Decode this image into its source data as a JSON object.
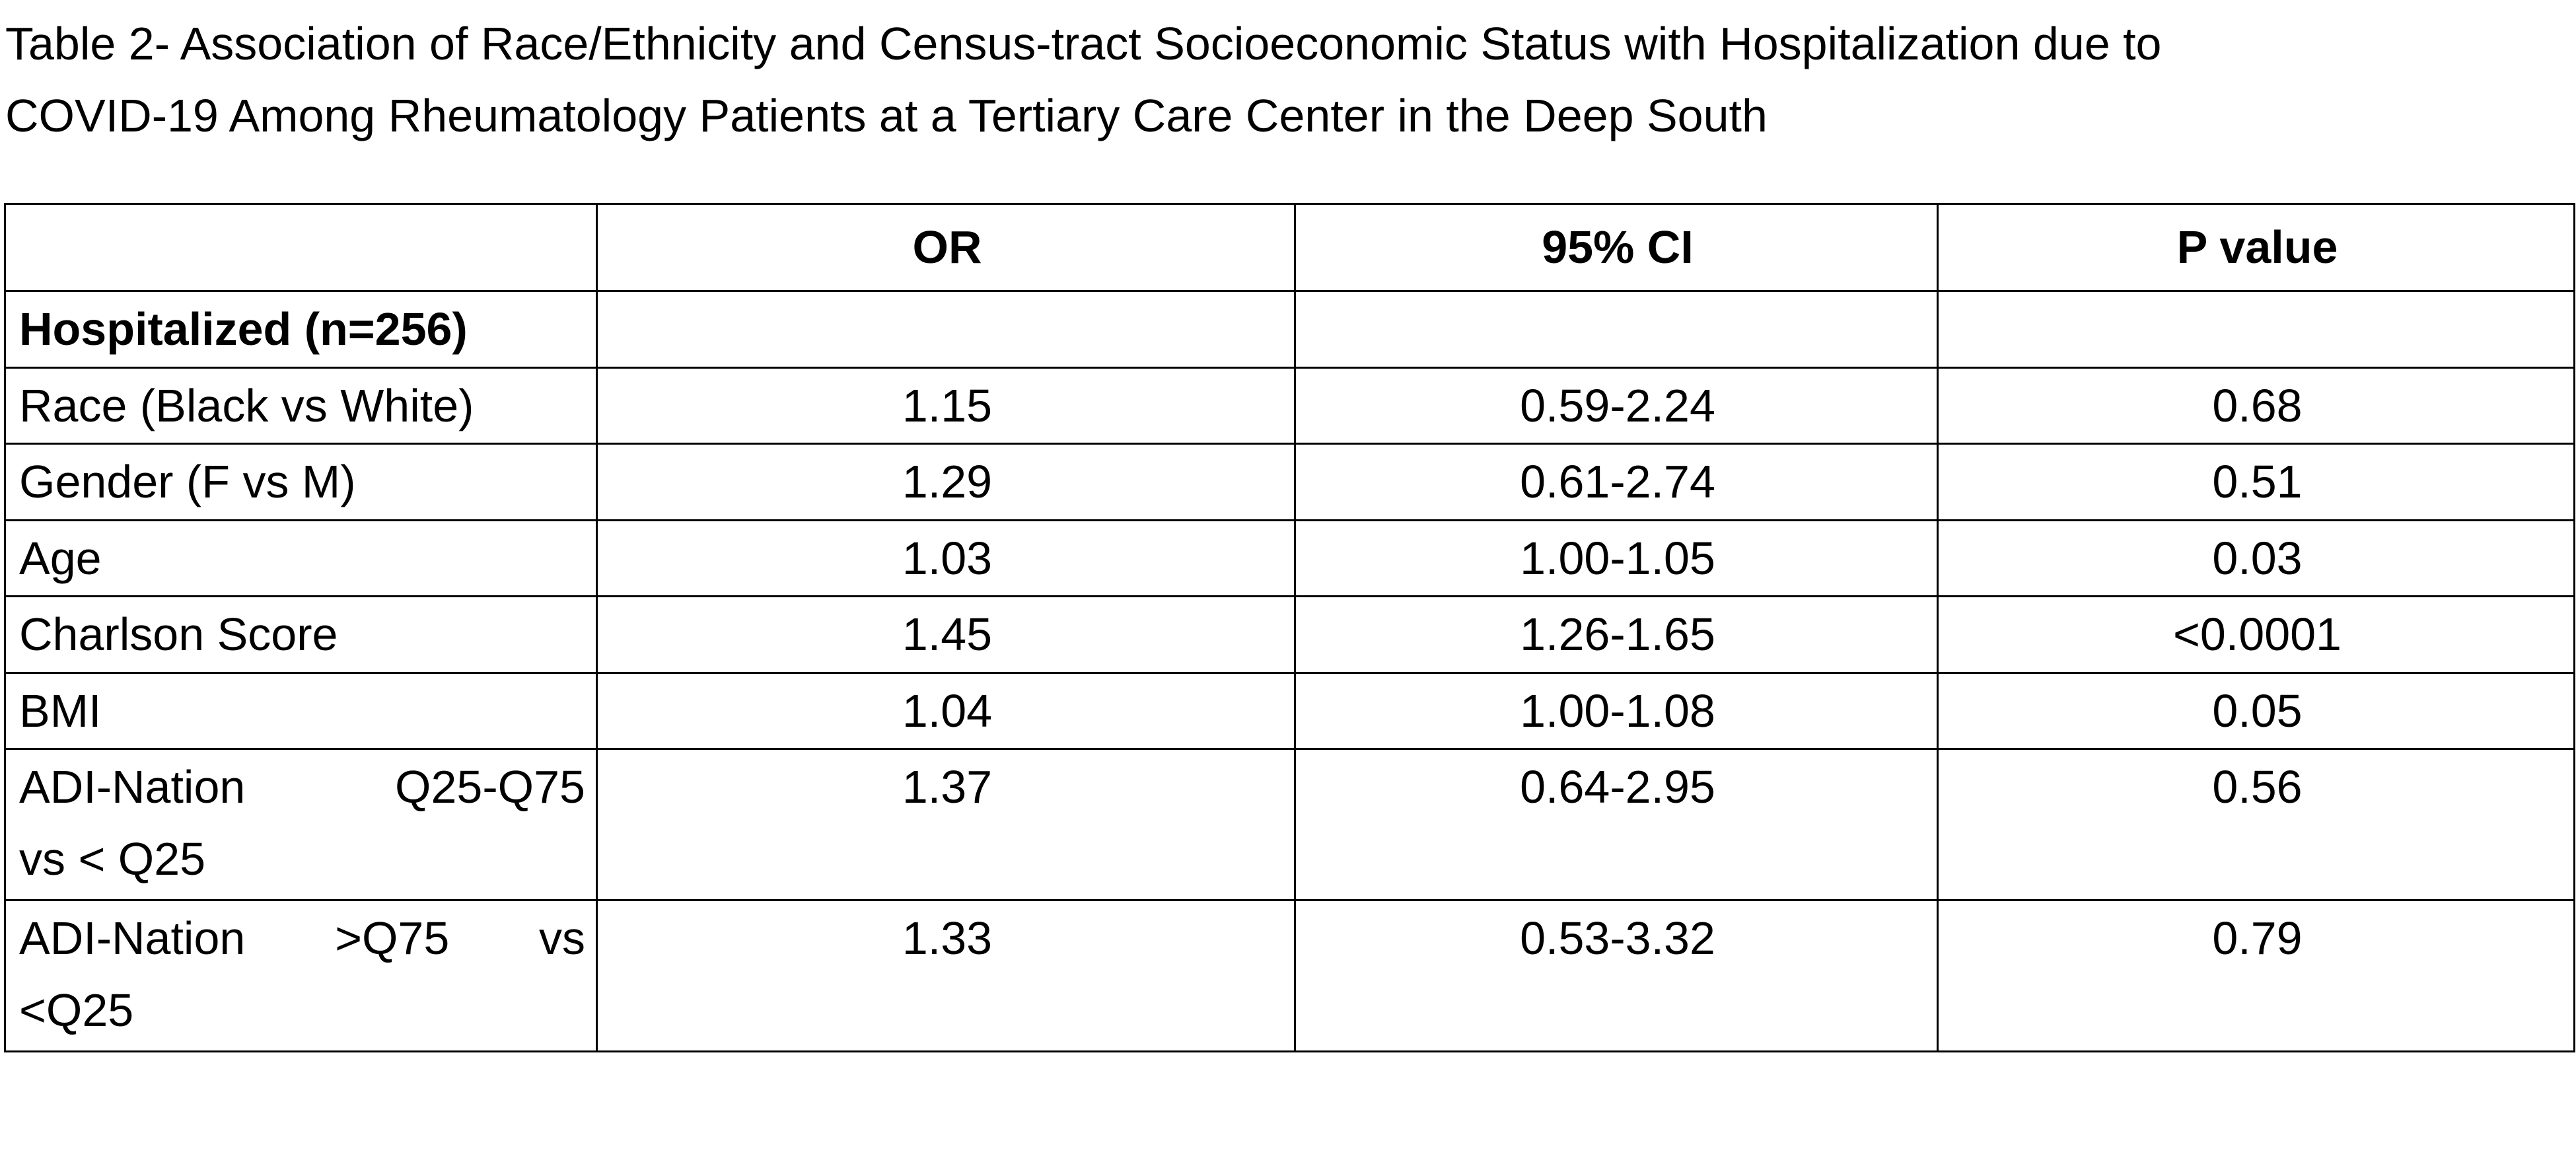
{
  "title_lines": [
    "Table 2- Association of Race/Ethnicity and Census-tract Socioeconomic Status with Hospitalization due to",
    "COVID-19 Among Rheumatology Patients at a Tertiary Care Center in the Deep South"
  ],
  "table": {
    "columns": [
      "",
      "OR",
      "95% CI",
      "P value"
    ],
    "rows": [
      {
        "label": "Hospitalized (n=256)",
        "label2": "",
        "or": "",
        "ci": "",
        "p": ""
      },
      {
        "label": "Race (Black vs White)",
        "label2": "",
        "or": "1.15",
        "ci": "0.59-2.24",
        "p": "0.68"
      },
      {
        "label": "Gender (F vs M)",
        "label2": "",
        "or": "1.29",
        "ci": "0.61-2.74",
        "p": "0.51"
      },
      {
        "label": "Age",
        "label2": "",
        "or": "1.03",
        "ci": "1.00-1.05",
        "p": "0.03"
      },
      {
        "label": "Charlson Score",
        "label2": "",
        "or": "1.45",
        "ci": "1.26-1.65",
        "p": "<0.0001"
      },
      {
        "label": "BMI",
        "label2": "",
        "or": "1.04",
        "ci": "1.00-1.08",
        "p": "0.05"
      },
      {
        "label": "ADI-Nation Q25-Q75",
        "label2": "vs < Q25",
        "or": "1.37",
        "ci": "0.64-2.95",
        "p": "0.56"
      },
      {
        "label": "ADI-Nation >Q75 vs",
        "label2": "<Q25",
        "or": "1.33",
        "ci": "0.53-3.32",
        "p": "0.79"
      }
    ]
  }
}
